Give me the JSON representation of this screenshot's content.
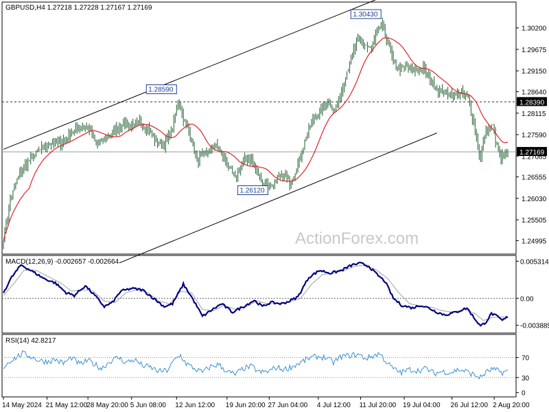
{
  "window": {
    "symbol_line": "GBPUSD,H4  1.27218 1.27228 1.27167 1.27169",
    "watermark": "ActionForex.com"
  },
  "colors": {
    "candle": "#1f5c2e",
    "ma": "#e0202a",
    "channel": "#000000",
    "macd": "#000080",
    "macd_signal": "#a0a0a0",
    "rsi": "#3a8fd0",
    "panel_border": "#000000",
    "dashed": "#333333"
  },
  "chart_data": [
    {
      "type": "candlestick",
      "title": "GBPUSD,H4  1.27218 1.27228 1.27167 1.27169",
      "ylim": [
        1.247,
        1.308
      ],
      "y_ticks": [
        "1.30200",
        "1.29675",
        "1.29150",
        "1.28640",
        "1.28115",
        "1.27590",
        "1.27065",
        "1.26555",
        "1.26030",
        "1.25505",
        "1.24995"
      ],
      "y_tick_values": [
        1.302,
        1.29675,
        1.2915,
        1.2864,
        1.28115,
        1.2759,
        1.27065,
        1.26555,
        1.2603,
        1.25505,
        1.24995
      ],
      "x_labels": [
        "14 May 2024",
        "21 May 12:00",
        "28 May 20:00",
        "5 Jun 08:00",
        "12 Jun 12:00",
        "19 Jun 20:00",
        "27 Jun 04:00",
        "4 Jul 12:00",
        "11 Jul 20:00",
        "19 Jul 04:00",
        "26 Jul 12:00",
        "2 Aug 20:00"
      ],
      "x_label_index": [
        0,
        32,
        62,
        94,
        127,
        164,
        195,
        231,
        262,
        294,
        329,
        360
      ],
      "anchors_close": [
        [
          0,
          1.2505
        ],
        [
          5,
          1.26
        ],
        [
          12,
          1.2665
        ],
        [
          20,
          1.27
        ],
        [
          28,
          1.2725
        ],
        [
          35,
          1.274
        ],
        [
          42,
          1.2738
        ],
        [
          50,
          1.2765
        ],
        [
          58,
          1.278
        ],
        [
          63,
          1.2775
        ],
        [
          68,
          1.2735
        ],
        [
          75,
          1.2748
        ],
        [
          82,
          1.277
        ],
        [
          88,
          1.279
        ],
        [
          95,
          1.2778
        ],
        [
          100,
          1.279
        ],
        [
          106,
          1.2775
        ],
        [
          112,
          1.274
        ],
        [
          118,
          1.2735
        ],
        [
          124,
          1.277
        ],
        [
          128,
          1.2845
        ],
        [
          132,
          1.28
        ],
        [
          137,
          1.276
        ],
        [
          142,
          1.2695
        ],
        [
          148,
          1.271
        ],
        [
          155,
          1.2735
        ],
        [
          160,
          1.2715
        ],
        [
          165,
          1.268
        ],
        [
          170,
          1.265
        ],
        [
          176,
          1.2695
        ],
        [
          182,
          1.27
        ],
        [
          186,
          1.2665
        ],
        [
          191,
          1.264
        ],
        [
          196,
          1.263
        ],
        [
          201,
          1.2648
        ],
        [
          206,
          1.266
        ],
        [
          210,
          1.264
        ],
        [
          215,
          1.2675
        ],
        [
          219,
          1.272
        ],
        [
          223,
          1.2765
        ],
        [
          228,
          1.28
        ],
        [
          233,
          1.2818
        ],
        [
          238,
          1.284
        ],
        [
          243,
          1.2815
        ],
        [
          248,
          1.2865
        ],
        [
          252,
          1.2915
        ],
        [
          256,
          1.2955
        ],
        [
          260,
          1.299
        ],
        [
          265,
          1.298
        ],
        [
          270,
          1.2965
        ],
        [
          274,
          1.301
        ],
        [
          278,
          1.303
        ],
        [
          282,
          1.2985
        ],
        [
          286,
          1.2935
        ],
        [
          291,
          1.292
        ],
        [
          296,
          1.2925
        ],
        [
          302,
          1.2915
        ],
        [
          308,
          1.292
        ],
        [
          313,
          1.2895
        ],
        [
          318,
          1.287
        ],
        [
          324,
          1.286
        ],
        [
          330,
          1.2855
        ],
        [
          336,
          1.286
        ],
        [
          341,
          1.2845
        ],
        [
          345,
          1.279
        ],
        [
          348,
          1.273
        ],
        [
          350,
          1.27
        ],
        [
          353,
          1.2755
        ],
        [
          356,
          1.2775
        ],
        [
          359,
          1.278
        ],
        [
          362,
          1.2728
        ],
        [
          365,
          1.27
        ],
        [
          368,
          1.2712
        ],
        [
          370,
          1.27169
        ]
      ],
      "candle_count": 371,
      "moving_average_period": 20,
      "channel_upper": [
        [
          0,
          1.2723
        ],
        [
          300,
          1.3125
        ]
      ],
      "channel_lower": [
        [
          85,
          1.2445
        ],
        [
          318,
          1.2763
        ]
      ],
      "horizontal_dashed_level": 1.2839,
      "current_price_line": 1.27169,
      "price_labels": [
        {
          "text": "1.30430",
          "index": 278,
          "value": 1.3043
        },
        {
          "text": "1.28590",
          "index": 128,
          "value": 1.2859
        },
        {
          "text": "1.26120",
          "index": 195,
          "value": 1.2612
        }
      ],
      "right_axis_markers": [
        {
          "text": "1.28390",
          "value": 1.2839
        },
        {
          "text": "1.27169",
          "value": 1.27169
        }
      ]
    },
    {
      "type": "line",
      "title": "MACD(12,26,9) -0.002657 -0.002664",
      "ylim": [
        -0.0048,
        0.00585
      ],
      "y_ticks": [
        "0.005314",
        "0.00",
        "-0.003885"
      ],
      "y_tick_values": [
        0.005314,
        0.0,
        -0.003885
      ],
      "zero_line": 0.0,
      "series": [
        {
          "name": "",
          "anchors": [
            [
              0,
              0.0008
            ],
            [
              6,
              0.003
            ],
            [
              13,
              0.0048
            ],
            [
              20,
              0.004
            ],
            [
              30,
              0.0028
            ],
            [
              38,
              0.0022
            ],
            [
              46,
              0.0008
            ],
            [
              52,
              0.0004
            ],
            [
              60,
              0.0018
            ],
            [
              67,
              0.0004
            ],
            [
              74,
              -0.0012
            ],
            [
              80,
              -0.0006
            ],
            [
              86,
              0.001
            ],
            [
              94,
              0.0014
            ],
            [
              102,
              0.0012
            ],
            [
              110,
              0.0
            ],
            [
              118,
              -0.0012
            ],
            [
              124,
              -0.0008
            ],
            [
              132,
              0.002
            ],
            [
              138,
              0.0002
            ],
            [
              146,
              -0.0026
            ],
            [
              152,
              -0.0018
            ],
            [
              160,
              -0.0008
            ],
            [
              168,
              -0.002
            ],
            [
              176,
              -0.0012
            ],
            [
              184,
              -0.0003
            ],
            [
              190,
              -0.0012
            ],
            [
              196,
              -0.0006
            ],
            [
              204,
              -0.0008
            ],
            [
              210,
              -0.0004
            ],
            [
              216,
              0.0002
            ],
            [
              224,
              0.003
            ],
            [
              232,
              0.004
            ],
            [
              240,
              0.0036
            ],
            [
              248,
              0.004
            ],
            [
              256,
              0.0048
            ],
            [
              262,
              0.005
            ],
            [
              268,
              0.0046
            ],
            [
              274,
              0.0034
            ],
            [
              280,
              0.0024
            ],
            [
              286,
              0.0
            ],
            [
              292,
              -0.001
            ],
            [
              300,
              -0.0014
            ],
            [
              306,
              -0.001
            ],
            [
              312,
              -0.0014
            ],
            [
              318,
              -0.002
            ],
            [
              324,
              -0.0024
            ],
            [
              332,
              -0.002
            ],
            [
              340,
              -0.0014
            ],
            [
              346,
              -0.003
            ],
            [
              350,
              -0.004
            ],
            [
              354,
              -0.0034
            ],
            [
              358,
              -0.0022
            ],
            [
              362,
              -0.0026
            ],
            [
              366,
              -0.0032
            ],
            [
              370,
              -0.002657
            ]
          ]
        },
        {
          "name": "",
          "anchors": [
            [
              0,
              0.0004
            ],
            [
              8,
              0.0022
            ],
            [
              15,
              0.004
            ],
            [
              24,
              0.004
            ],
            [
              34,
              0.003
            ],
            [
              42,
              0.0022
            ],
            [
              50,
              0.001
            ],
            [
              58,
              0.0012
            ],
            [
              66,
              0.001
            ],
            [
              74,
              -0.0004
            ],
            [
              82,
              -0.0006
            ],
            [
              90,
              0.0008
            ],
            [
              98,
              0.0012
            ],
            [
              106,
              0.0008
            ],
            [
              114,
              -0.0004
            ],
            [
              122,
              -0.0008
            ],
            [
              130,
              0.001
            ],
            [
              138,
              0.0008
            ],
            [
              146,
              -0.0016
            ],
            [
              154,
              -0.0018
            ],
            [
              162,
              -0.001
            ],
            [
              170,
              -0.0016
            ],
            [
              178,
              -0.0012
            ],
            [
              186,
              -0.0004
            ],
            [
              194,
              -0.0008
            ],
            [
              202,
              -0.0007
            ],
            [
              210,
              -0.0005
            ],
            [
              218,
              0.0
            ],
            [
              226,
              0.002
            ],
            [
              234,
              0.0034
            ],
            [
              242,
              0.0036
            ],
            [
              250,
              0.004
            ],
            [
              258,
              0.0046
            ],
            [
              266,
              0.0048
            ],
            [
              274,
              0.004
            ],
            [
              282,
              0.0028
            ],
            [
              290,
              0.0008
            ],
            [
              298,
              -0.0008
            ],
            [
              306,
              -0.0011
            ],
            [
              314,
              -0.0013
            ],
            [
              322,
              -0.0018
            ],
            [
              330,
              -0.002
            ],
            [
              338,
              -0.0016
            ],
            [
              346,
              -0.0022
            ],
            [
              352,
              -0.0032
            ],
            [
              358,
              -0.0028
            ],
            [
              364,
              -0.0027
            ],
            [
              370,
              -0.002664
            ]
          ]
        }
      ]
    },
    {
      "type": "line",
      "title": "RSI(14) 42.8217",
      "ylim": [
        -6,
        112
      ],
      "y_ticks": [
        "70",
        "30",
        "0"
      ],
      "y_tick_values": [
        70,
        30,
        0
      ],
      "dotted_levels": [
        70,
        30
      ],
      "series": [
        {
          "name": "",
          "anchors": [
            [
              0,
              50
            ],
            [
              4,
              62
            ],
            [
              8,
              68
            ],
            [
              14,
              78
            ],
            [
              20,
              72
            ],
            [
              26,
              64
            ],
            [
              32,
              62
            ],
            [
              38,
              66
            ],
            [
              44,
              58
            ],
            [
              50,
              70
            ],
            [
              56,
              56
            ],
            [
              62,
              64
            ],
            [
              66,
              58
            ],
            [
              72,
              48
            ],
            [
              78,
              62
            ],
            [
              84,
              70
            ],
            [
              90,
              60
            ],
            [
              96,
              66
            ],
            [
              102,
              54
            ],
            [
              108,
              50
            ],
            [
              114,
              42
            ],
            [
              120,
              44
            ],
            [
              126,
              66
            ],
            [
              130,
              74
            ],
            [
              134,
              58
            ],
            [
              140,
              48
            ],
            [
              146,
              40
            ],
            [
              152,
              52
            ],
            [
              158,
              56
            ],
            [
              164,
              42
            ],
            [
              170,
              36
            ],
            [
              176,
              48
            ],
            [
              182,
              52
            ],
            [
              188,
              40
            ],
            [
              194,
              42
            ],
            [
              200,
              50
            ],
            [
              206,
              46
            ],
            [
              212,
              52
            ],
            [
              218,
              60
            ],
            [
              224,
              68
            ],
            [
              230,
              72
            ],
            [
              236,
              70
            ],
            [
              242,
              60
            ],
            [
              248,
              72
            ],
            [
              254,
              74
            ],
            [
              260,
              76
            ],
            [
              266,
              68
            ],
            [
              272,
              74
            ],
            [
              276,
              78
            ],
            [
              280,
              64
            ],
            [
              284,
              52
            ],
            [
              288,
              44
            ],
            [
              292,
              40
            ],
            [
              298,
              46
            ],
            [
              304,
              44
            ],
            [
              310,
              48
            ],
            [
              316,
              38
            ],
            [
              322,
              42
            ],
            [
              328,
              40
            ],
            [
              334,
              46
            ],
            [
              340,
              42
            ],
            [
              346,
              34
            ],
            [
              350,
              30
            ],
            [
              354,
              40
            ],
            [
              358,
              46
            ],
            [
              362,
              44
            ],
            [
              366,
              40
            ],
            [
              370,
              42.8217
            ]
          ]
        }
      ]
    }
  ]
}
